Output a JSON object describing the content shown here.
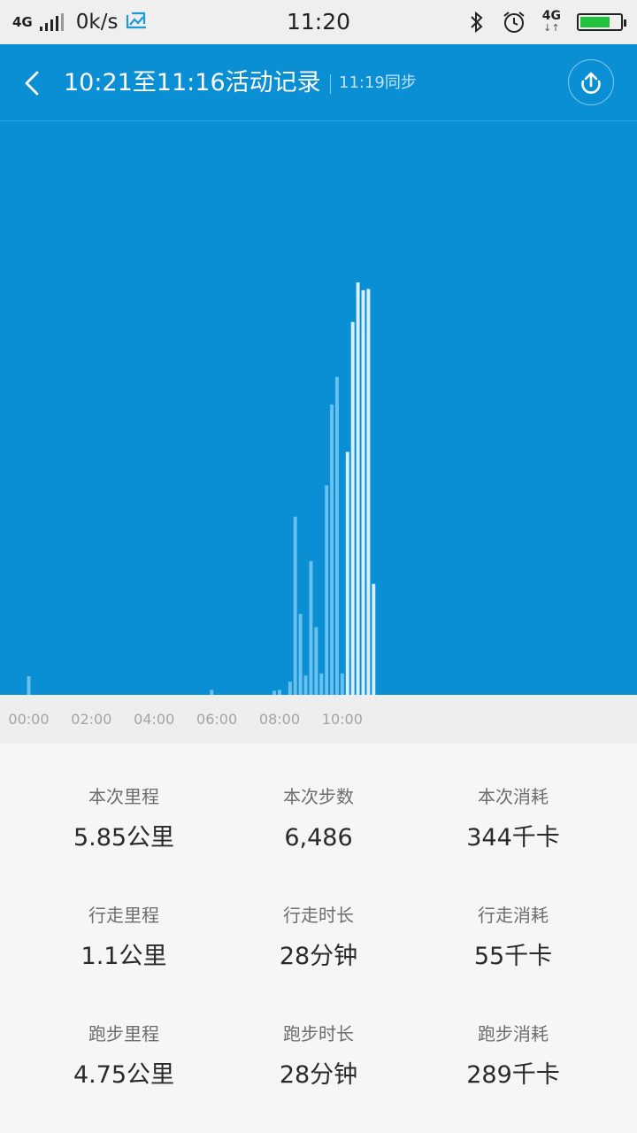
{
  "status_bar": {
    "network": "4G",
    "speed": "0k/s",
    "time": "11:20",
    "right_network": "4G",
    "icons": [
      "signal-icon",
      "screenshot-icon",
      "bluetooth-icon",
      "alarm-icon",
      "data-arrows-icon",
      "battery-icon"
    ],
    "battery_level": 0.75,
    "battery_color": "#20c33b"
  },
  "header": {
    "title": "10:21至11:16活动记录",
    "sync_text": "11:19同步",
    "background": "#0a8fd4"
  },
  "chart_data": {
    "type": "bar",
    "xlabel": "",
    "ylabel": "",
    "x_ticks": [
      "00:00",
      "02:00",
      "04:00",
      "06:00",
      "08:00",
      "10:00"
    ],
    "x_domain_minutes": [
      -55,
      1164
    ],
    "bin_minutes": 10,
    "ylim": [
      0,
      100
    ],
    "grid": false,
    "bars": [
      {
        "t": "00:00",
        "value": 4.5,
        "highlight": false
      },
      {
        "t": "05:50",
        "value": 1.2,
        "highlight": false
      },
      {
        "t": "07:50",
        "value": 1.0,
        "highlight": false
      },
      {
        "t": "08:00",
        "value": 1.2,
        "highlight": false
      },
      {
        "t": "08:20",
        "value": 3.2,
        "highlight": false
      },
      {
        "t": "08:30",
        "value": 43.2,
        "highlight": false
      },
      {
        "t": "08:40",
        "value": 19.6,
        "highlight": false
      },
      {
        "t": "08:50",
        "value": 4.7,
        "highlight": false
      },
      {
        "t": "09:00",
        "value": 32.4,
        "highlight": false
      },
      {
        "t": "09:10",
        "value": 16.4,
        "highlight": false
      },
      {
        "t": "09:20",
        "value": 5.2,
        "highlight": false
      },
      {
        "t": "09:30",
        "value": 50.8,
        "highlight": false
      },
      {
        "t": "09:40",
        "value": 70.4,
        "highlight": false
      },
      {
        "t": "09:50",
        "value": 77.1,
        "highlight": false
      },
      {
        "t": "10:00",
        "value": 5.2,
        "highlight": false
      },
      {
        "t": "10:10",
        "value": 58.9,
        "highlight": true
      },
      {
        "t": "10:20",
        "value": 90.4,
        "highlight": true
      },
      {
        "t": "10:30",
        "value": 100,
        "highlight": true
      },
      {
        "t": "10:40",
        "value": 98.1,
        "highlight": true
      },
      {
        "t": "10:50",
        "value": 98.4,
        "highlight": true
      },
      {
        "t": "11:00",
        "value": 26.9,
        "highlight": true
      }
    ],
    "colors": {
      "background": "#0a8fd4",
      "bar": "#6bc1ee",
      "highlight": "#d9f1fd"
    }
  },
  "stats": [
    {
      "label": "本次里程",
      "value": "5.85公里"
    },
    {
      "label": "本次步数",
      "value": "6,486"
    },
    {
      "label": "本次消耗",
      "value": "344千卡"
    },
    {
      "label": "行走里程",
      "value": "1.1公里"
    },
    {
      "label": "行走时长",
      "value": "28分钟"
    },
    {
      "label": "行走消耗",
      "value": "55千卡"
    },
    {
      "label": "跑步里程",
      "value": "4.75公里"
    },
    {
      "label": "跑步时长",
      "value": "28分钟"
    },
    {
      "label": "跑步消耗",
      "value": "289千卡"
    }
  ]
}
